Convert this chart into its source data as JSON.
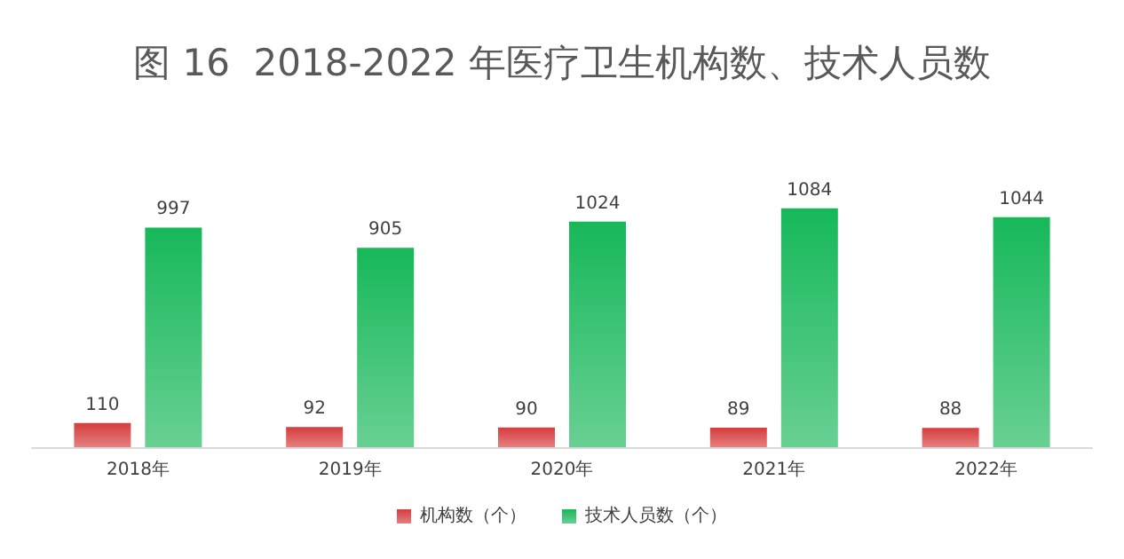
{
  "chart_data": {
    "type": "bar",
    "title": "图 16  2018-2022 年医疗卫生机构数、技术人员数",
    "categories": [
      "2018年",
      "2019年",
      "2020年",
      "2021年",
      "2022年"
    ],
    "series": [
      {
        "name": "机构数（个）",
        "color": "#d63c3c",
        "values": [
          110,
          92,
          90,
          89,
          88
        ]
      },
      {
        "name": "技术人员数（个）",
        "color": "#17b85a",
        "values": [
          997,
          905,
          1024,
          1084,
          1044
        ]
      }
    ],
    "data_labels": true,
    "legend": "bottom"
  }
}
